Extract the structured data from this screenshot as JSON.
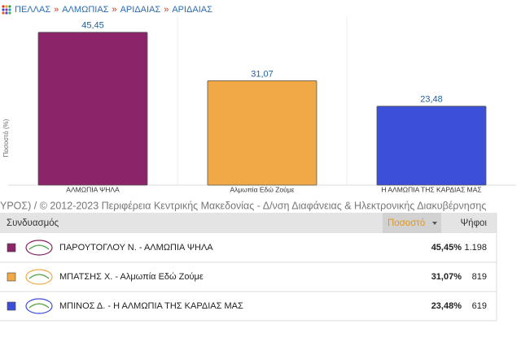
{
  "breadcrumb": {
    "items": [
      "ΠΕΛΛΑΣ",
      "ΑΛΜΩΠΙΑΣ",
      "ΑΡΙΔΑΙΑΣ",
      "ΑΡΙΔΑΙΑΣ"
    ],
    "separator": "»"
  },
  "chart_data": {
    "type": "bar",
    "y_label": "Ποσοστό (%)",
    "categories": [
      "ΑΛΜΩΠΙΑ ΨΗΛΑ",
      "Αλμωπία Εδώ Ζούμε",
      "Η ΑΛΜΩΠΙΑ ΤΗΣ ΚΑΡΔΙΑΣ ΜΑΣ"
    ],
    "values": [
      45.45,
      31.07,
      23.48
    ],
    "value_labels": [
      "45,45",
      "31,07",
      "23,48"
    ],
    "colors": [
      "#8b2468",
      "#f1a947",
      "#3c4fd9"
    ],
    "ylim": [
      0,
      50
    ]
  },
  "footer": "ΥΡΟΣ) / © 2012-2023 Περιφέρεια Κεντρικής Μακεδονίας - Δ/νση Διαφάνειας & Ηλεκτρονικής Διακυβέρνησης",
  "table": {
    "headers": [
      "Συνδυασμός",
      "Ποσοστό",
      "Ψήφοι"
    ],
    "rows": [
      [
        "ΠΑΡΟΥΤΟΓΛΟΥ Ν. - ΑΛΜΩΠΙΑ ΨΗΛΑ",
        "45,45%",
        "1.198"
      ],
      [
        "ΜΠΑΤΣΗΣ Χ. - Αλμωπία Εδώ Ζούμε",
        "31,07%",
        "819"
      ],
      [
        "ΜΠΙΝΟΣ Δ. - Η ΑΛΜΩΠΙΑ ΤΗΣ ΚΑΡΔΙΑΣ ΜΑΣ",
        "23,48%",
        "619"
      ]
    ]
  }
}
